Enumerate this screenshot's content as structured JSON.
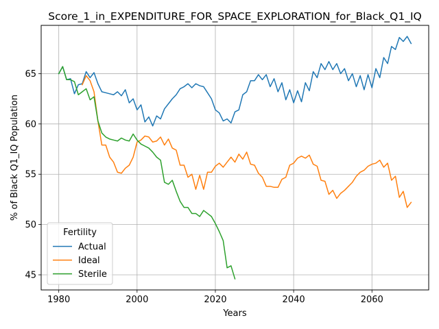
{
  "chart_data": {
    "type": "line",
    "title": "Score_1_in_EXPENDITURE_FOR_SPACE_EXPLORATION_for_Black_Q1_IQ",
    "xlabel": "Years",
    "ylabel": "% of Black Q1_IQ Population",
    "xlim": [
      1975.5,
      2074.5
    ],
    "ylim": [
      43.5,
      69.8
    ],
    "xticks": [
      1980,
      2000,
      2020,
      2040,
      2060
    ],
    "yticks": [
      45,
      50,
      55,
      60,
      65
    ],
    "grid": true,
    "legend": {
      "title": "Fertility",
      "placement": "lower-left"
    },
    "series": [
      {
        "name": "Actual",
        "color": "#1f77b4",
        "x": [
          1980,
          1981,
          1982,
          1983,
          1984,
          1985,
          1986,
          1987,
          1988,
          1989,
          1990,
          1991,
          1992,
          1993,
          1994,
          1995,
          1996,
          1997,
          1998,
          1999,
          2000,
          2001,
          2002,
          2003,
          2004,
          2005,
          2006,
          2007,
          2008,
          2009,
          2010,
          2011,
          2012,
          2013,
          2014,
          2015,
          2016,
          2017,
          2018,
          2019,
          2020,
          2021,
          2022,
          2023,
          2024,
          2025,
          2026,
          2027,
          2028,
          2029,
          2030,
          2031,
          2032,
          2033,
          2034,
          2035,
          2036,
          2037,
          2038,
          2039,
          2040,
          2041,
          2042,
          2043,
          2044,
          2045,
          2046,
          2047,
          2048,
          2049,
          2050,
          2051,
          2052,
          2053,
          2054,
          2055,
          2056,
          2057,
          2058,
          2059,
          2060,
          2061,
          2062,
          2063,
          2064,
          2065,
          2066,
          2067,
          2068,
          2069,
          2070
        ],
        "values": [
          65.0,
          65.7,
          64.4,
          64.5,
          63.0,
          63.9,
          64.0,
          65.2,
          64.6,
          65.1,
          64.0,
          63.2,
          63.1,
          63.0,
          62.9,
          63.2,
          62.8,
          63.4,
          62.1,
          62.5,
          61.4,
          61.9,
          60.2,
          60.7,
          59.8,
          60.8,
          60.5,
          61.5,
          62.0,
          62.5,
          62.9,
          63.5,
          63.7,
          64.0,
          63.6,
          64.0,
          63.8,
          63.7,
          63.1,
          62.5,
          61.4,
          61.1,
          60.3,
          60.5,
          60.1,
          61.2,
          61.4,
          62.9,
          63.2,
          64.3,
          64.3,
          64.9,
          64.4,
          64.9,
          63.7,
          64.5,
          63.2,
          64.1,
          62.4,
          63.4,
          62.1,
          63.3,
          62.2,
          64.1,
          63.3,
          65.2,
          64.6,
          66.0,
          65.4,
          66.2,
          65.4,
          66.0,
          65.0,
          65.5,
          64.3,
          65.0,
          63.7,
          64.8,
          63.4,
          64.9,
          63.6,
          65.5,
          64.6,
          66.6,
          66.0,
          67.7,
          67.4,
          68.6,
          68.2,
          68.7,
          68.0
        ]
      },
      {
        "name": "Ideal",
        "color": "#ff7f0e",
        "x": [
          1986,
          1987,
          1988,
          1989,
          1990,
          1991,
          1992,
          1993,
          1994,
          1995,
          1996,
          1997,
          1998,
          1999,
          2000,
          2001,
          2002,
          2003,
          2004,
          2005,
          2006,
          2007,
          2008,
          2009,
          2010,
          2011,
          2012,
          2013,
          2014,
          2015,
          2016,
          2017,
          2018,
          2019,
          2020,
          2021,
          2022,
          2023,
          2024,
          2025,
          2026,
          2027,
          2028,
          2029,
          2030,
          2031,
          2032,
          2033,
          2034,
          2035,
          2036,
          2037,
          2038,
          2039,
          2040,
          2041,
          2042,
          2043,
          2044,
          2045,
          2046,
          2047,
          2048,
          2049,
          2050,
          2051,
          2052,
          2053,
          2054,
          2055,
          2056,
          2057,
          2058,
          2059,
          2060,
          2061,
          2062,
          2063,
          2064,
          2065,
          2066,
          2067,
          2068,
          2069,
          2070
        ],
        "values": [
          63.9,
          64.8,
          64.3,
          63.2,
          60.3,
          57.9,
          57.9,
          56.7,
          56.2,
          55.2,
          55.1,
          55.6,
          55.9,
          56.7,
          58.2,
          58.4,
          58.8,
          58.7,
          58.2,
          58.3,
          58.7,
          57.9,
          58.5,
          57.6,
          57.4,
          55.9,
          55.9,
          54.7,
          55.0,
          53.5,
          54.9,
          53.5,
          55.2,
          55.2,
          55.8,
          56.1,
          55.7,
          56.2,
          56.7,
          56.2,
          57.0,
          56.5,
          57.2,
          56.0,
          55.9,
          55.1,
          54.7,
          53.8,
          53.8,
          53.7,
          53.7,
          54.5,
          54.7,
          55.9,
          56.1,
          56.6,
          56.8,
          56.6,
          56.9,
          56.0,
          55.8,
          54.4,
          54.3,
          53.0,
          53.4,
          52.6,
          53.1,
          53.4,
          53.8,
          54.2,
          54.8,
          55.2,
          55.4,
          55.8,
          56.0,
          56.1,
          56.4,
          55.7,
          56.1,
          54.4,
          54.8,
          52.7,
          53.3,
          51.7,
          52.2
        ]
      },
      {
        "name": "Sterile",
        "color": "#2ca02c",
        "x": [
          1980,
          1981,
          1982,
          1983,
          1984,
          1985,
          1986,
          1987,
          1988,
          1989,
          1990,
          1991,
          1992,
          1993,
          1994,
          1995,
          1996,
          1997,
          1998,
          1999,
          2000,
          2001,
          2002,
          2003,
          2004,
          2005,
          2006,
          2007,
          2008,
          2009,
          2010,
          2011,
          2012,
          2013,
          2014,
          2015,
          2016,
          2017,
          2018,
          2019,
          2020,
          2021,
          2022,
          2023,
          2024,
          2025
        ],
        "values": [
          65.0,
          65.7,
          64.4,
          64.4,
          64.2,
          62.9,
          63.2,
          63.5,
          62.4,
          62.7,
          60.3,
          59.1,
          58.7,
          58.5,
          58.4,
          58.3,
          58.6,
          58.4,
          58.3,
          59.0,
          58.4,
          58.0,
          57.8,
          57.6,
          57.2,
          56.7,
          56.4,
          54.2,
          54.0,
          54.4,
          53.3,
          52.3,
          51.7,
          51.7,
          51.1,
          51.1,
          50.8,
          51.4,
          51.1,
          50.8,
          50.1,
          49.3,
          48.4,
          45.7,
          45.9,
          44.6
        ]
      }
    ]
  }
}
